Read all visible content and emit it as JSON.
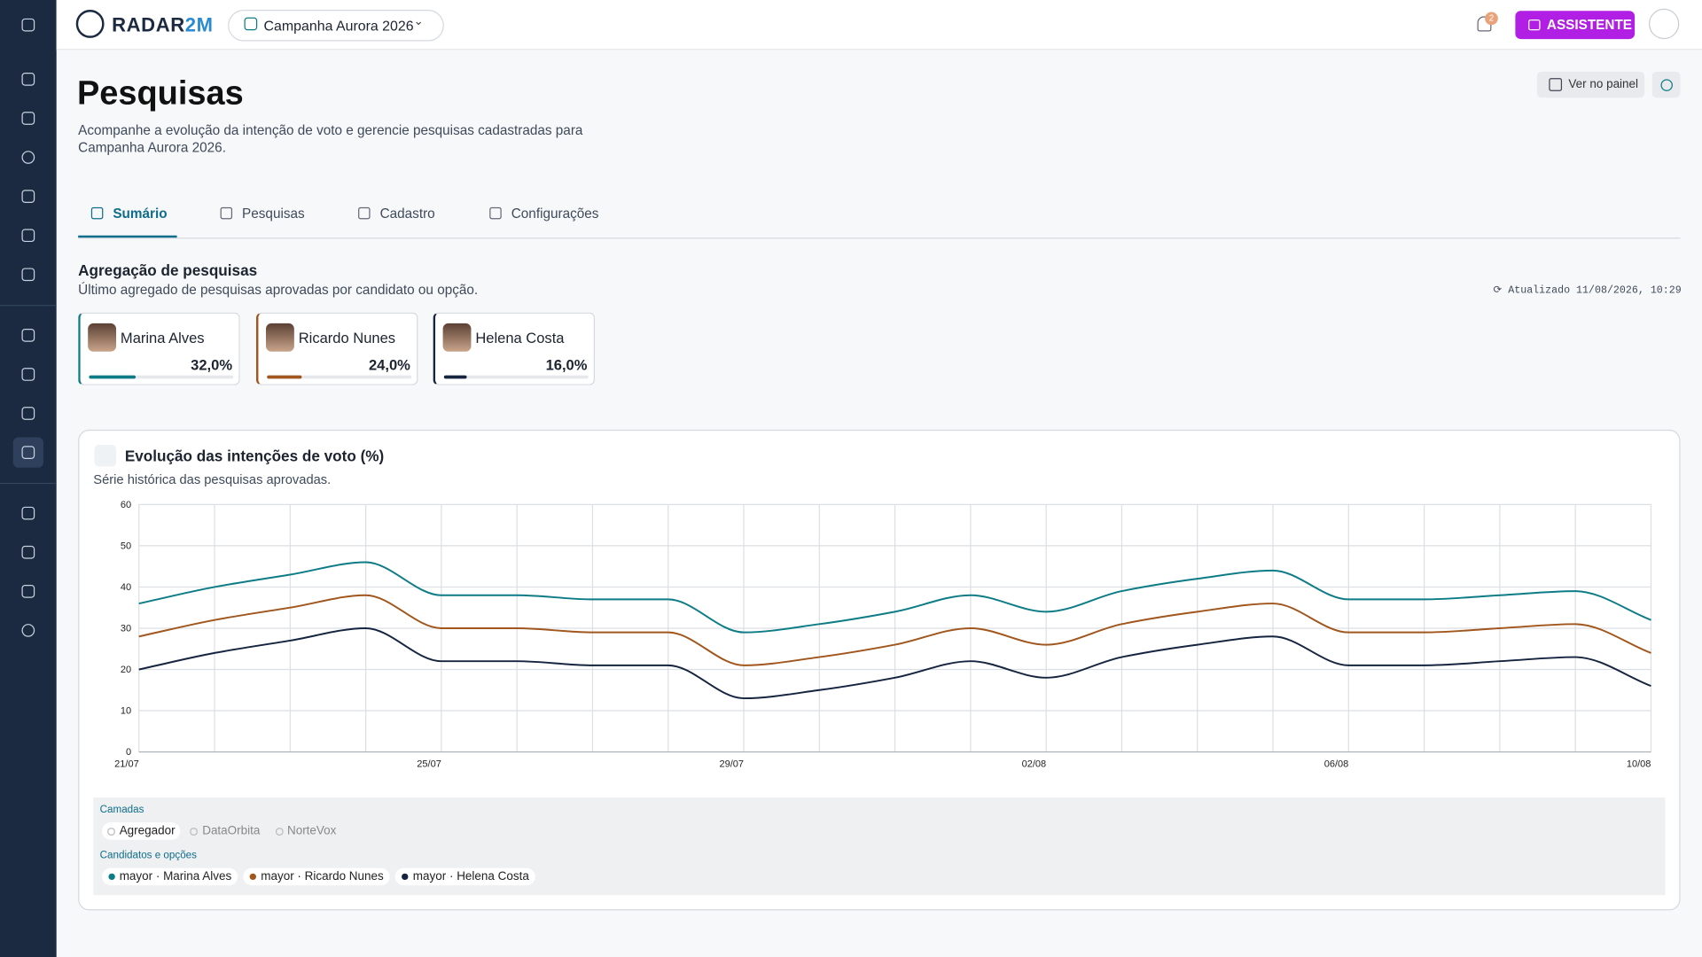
{
  "header": {
    "logo_main": "RADAR",
    "logo_accent": "2M",
    "campaign": "Campanha Aurora 2026",
    "notifications": "2",
    "assistant": "ASSISTENTE"
  },
  "page": {
    "title": "Pesquisas",
    "description": "Acompanhe a evolução da intenção de voto e gerencie pesquisas cadastradas para Campanha Aurora 2026.",
    "panel_button": "Ver no painel"
  },
  "tabs": [
    "Sumário",
    "Pesquisas",
    "Cadastro",
    "Configurações"
  ],
  "aggregation": {
    "title": "Agregação de pesquisas",
    "subtitle": "Último agregado de pesquisas aprovadas por candidato ou opção.",
    "updated": "Atualizado 11/08/2026, 10:29",
    "candidates": [
      {
        "name": "Marina Alves",
        "value": 32,
        "value_label": "32,0%",
        "color": "#0e7c86"
      },
      {
        "name": "Ricardo Nunes",
        "value": 24,
        "value_label": "24,0%",
        "color": "#a0561c"
      },
      {
        "name": "Helena Costa",
        "value": 16,
        "value_label": "16,0%",
        "color": "#15253f"
      }
    ]
  },
  "chart_data": {
    "type": "line",
    "title": "Evolução das intenções de voto (%)",
    "subtitle": "Série histórica das pesquisas aprovadas.",
    "categories": [
      "21/07",
      null,
      null,
      null,
      "25/07",
      null,
      null,
      null,
      "29/07",
      null,
      null,
      null,
      "02/08",
      null,
      null,
      null,
      "06/08",
      null,
      null,
      null,
      "10/08"
    ],
    "series": [
      {
        "name": "mayor · Marina Alves",
        "color": "#0e7c86",
        "values": [
          36,
          40,
          43,
          46,
          38,
          38,
          37,
          37,
          29,
          31,
          34,
          38,
          34,
          39,
          42,
          44,
          37,
          37,
          38,
          39,
          32
        ]
      },
      {
        "name": "mayor · Ricardo Nunes",
        "color": "#a0561c",
        "values": [
          28,
          32,
          35,
          38,
          30,
          30,
          29,
          29,
          21,
          23,
          26,
          30,
          26,
          31,
          34,
          36,
          29,
          29,
          30,
          31,
          24
        ]
      },
      {
        "name": "mayor · Helena Costa",
        "color": "#15253f",
        "values": [
          20,
          24,
          27,
          30,
          22,
          22,
          21,
          21,
          13,
          15,
          18,
          22,
          18,
          23,
          26,
          28,
          21,
          21,
          22,
          23,
          16
        ]
      }
    ],
    "ylim": [
      0,
      60
    ],
    "yticks": [
      0,
      10,
      20,
      30,
      40,
      50,
      60
    ],
    "grid": true,
    "layers_title": "Camadas",
    "layers": [
      "Agregador",
      "DataOrbita",
      "NorteVox"
    ],
    "series_title": "Candidatos e opções"
  }
}
